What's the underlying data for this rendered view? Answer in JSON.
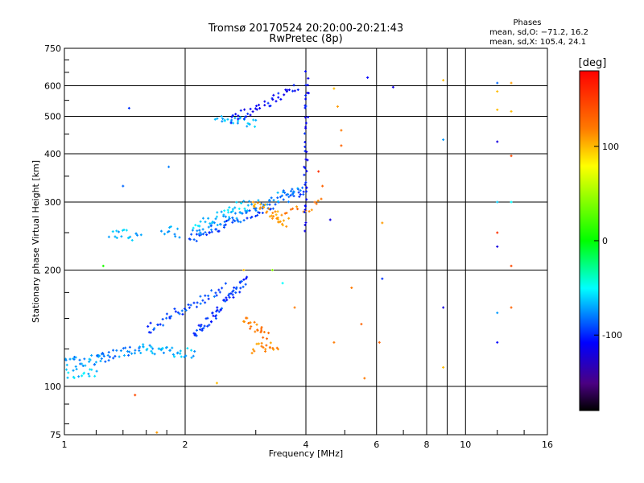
{
  "chart_data": {
    "type": "scatter",
    "title": "Tromsø 20170524 20:20:00-20:21:43",
    "subtitle": "RwPretec (8p)",
    "xlabel": "Frequency [MHz]",
    "ylabel": "Stationary phase Virtual Height [km]",
    "x_scale": "log",
    "y_scale": "log",
    "xlim": [
      1,
      16
    ],
    "ylim": [
      75,
      750
    ],
    "x_ticks": [
      1,
      2,
      4,
      6,
      8,
      10,
      16
    ],
    "y_ticks": [
      75,
      100,
      200,
      300,
      400,
      500,
      600,
      750
    ],
    "grid": true,
    "stats": {
      "heading": "Phases",
      "line_o": "mean, sd,O: −71.2, 16.2",
      "line_x": "mean, sd,X: 105.4, 24.1"
    },
    "colorbar": {
      "label": "[deg]",
      "range": [
        -180,
        180
      ],
      "ticks": [
        100,
        0,
        -100
      ]
    },
    "traces": [
      {
        "f0": 2.05,
        "f1": 3.95,
        "h0": 240,
        "h1": 320,
        "ph": -95,
        "n": 70
      },
      {
        "f0": 2.1,
        "f1": 3.95,
        "h0": 250,
        "h1": 330,
        "ph": -80,
        "n": 55
      },
      {
        "f0": 2.1,
        "f1": 2.9,
        "h0": 260,
        "h1": 300,
        "ph": -70,
        "n": 30
      },
      {
        "f0": 2.95,
        "f1": 3.6,
        "h0": 300,
        "h1": 265,
        "ph": 120,
        "n": 30
      },
      {
        "f0": 3.3,
        "f1": 4.4,
        "h0": 270,
        "h1": 300,
        "ph": 130,
        "n": 18
      },
      {
        "f0": 2.4,
        "f1": 3.0,
        "h0": 500,
        "h1": 480,
        "ph": -75,
        "n": 25
      },
      {
        "f0": 2.6,
        "f1": 3.8,
        "h0": 490,
        "h1": 590,
        "ph": -110,
        "n": 40
      },
      {
        "f0": 1.0,
        "f1": 1.25,
        "h0": 115,
        "h1": 118,
        "ph": -80,
        "n": 28
      },
      {
        "f0": 1.0,
        "f1": 1.2,
        "h0": 108,
        "h1": 108,
        "ph": -70,
        "n": 18
      },
      {
        "f0": 1.2,
        "f1": 1.55,
        "h0": 118,
        "h1": 125,
        "ph": -85,
        "n": 30
      },
      {
        "f0": 1.55,
        "f1": 2.1,
        "h0": 125,
        "h1": 122,
        "ph": -75,
        "n": 40
      },
      {
        "f0": 1.6,
        "f1": 2.5,
        "h0": 140,
        "h1": 180,
        "ph": -95,
        "n": 45
      },
      {
        "f0": 2.1,
        "f1": 2.85,
        "h0": 135,
        "h1": 190,
        "ph": -100,
        "n": 60
      },
      {
        "f0": 2.8,
        "f1": 3.2,
        "h0": 150,
        "h1": 135,
        "ph": 130,
        "n": 22
      },
      {
        "f0": 2.95,
        "f1": 3.4,
        "h0": 125,
        "h1": 128,
        "ph": 125,
        "n": 18
      },
      {
        "f0": 1.3,
        "f1": 1.55,
        "h0": 250,
        "h1": 245,
        "ph": -75,
        "n": 18
      },
      {
        "f0": 1.75,
        "f1": 1.95,
        "h0": 255,
        "h1": 250,
        "ph": -80,
        "n": 10
      },
      {
        "f0": 3.98,
        "f1": 4.03,
        "h0": 260,
        "h1": 650,
        "ph": -110,
        "n": 40
      }
    ],
    "points": [
      [
        1.45,
        525,
        -100
      ],
      [
        1.5,
        95,
        150
      ],
      [
        1.4,
        330,
        -90
      ],
      [
        1.82,
        370,
        -85
      ],
      [
        2.4,
        102,
        110
      ],
      [
        1.7,
        76,
        120
      ],
      [
        5.7,
        630,
        -110
      ],
      [
        6.6,
        595,
        -120
      ],
      [
        8.8,
        620,
        110
      ],
      [
        8.8,
        435,
        -80
      ],
      [
        8.8,
        160,
        -120
      ],
      [
        8.8,
        112,
        110
      ],
      [
        12.0,
        610,
        -90
      ],
      [
        12.0,
        580,
        110
      ],
      [
        12.0,
        520,
        110
      ],
      [
        12.0,
        430,
        -120
      ],
      [
        12.0,
        300,
        -70
      ],
      [
        12.0,
        250,
        160
      ],
      [
        12.0,
        230,
        -120
      ],
      [
        12.0,
        155,
        -80
      ],
      [
        12.0,
        130,
        -110
      ],
      [
        13.0,
        610,
        120
      ],
      [
        13.0,
        515,
        110
      ],
      [
        13.0,
        395,
        150
      ],
      [
        13.0,
        300,
        -60
      ],
      [
        13.0,
        205,
        150
      ],
      [
        13.0,
        160,
        140
      ],
      [
        4.7,
        590,
        110
      ],
      [
        4.8,
        530,
        120
      ],
      [
        4.9,
        460,
        130
      ],
      [
        4.9,
        420,
        140
      ],
      [
        4.6,
        270,
        -120
      ],
      [
        4.4,
        330,
        140
      ],
      [
        4.3,
        360,
        160
      ],
      [
        5.2,
        180,
        130
      ],
      [
        5.5,
        145,
        140
      ],
      [
        5.6,
        105,
        130
      ],
      [
        6.1,
        130,
        140
      ],
      [
        6.2,
        190,
        -100
      ],
      [
        6.2,
        265,
        120
      ],
      [
        4.7,
        130,
        130
      ],
      [
        3.75,
        160,
        130
      ],
      [
        3.5,
        185,
        -60
      ],
      [
        3.3,
        200,
        50
      ],
      [
        2.8,
        200,
        110
      ],
      [
        1.25,
        205,
        10
      ]
    ]
  }
}
